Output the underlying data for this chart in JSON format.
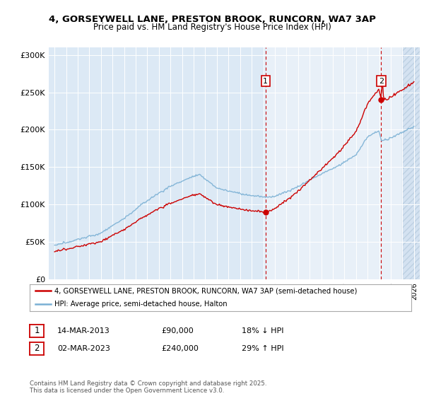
{
  "title_line1": "4, GORSEYWELL LANE, PRESTON BROOK, RUNCORN, WA7 3AP",
  "title_line2": "Price paid vs. HM Land Registry's House Price Index (HPI)",
  "legend_red": "4, GORSEYWELL LANE, PRESTON BROOK, RUNCORN, WA7 3AP (semi-detached house)",
  "legend_blue": "HPI: Average price, semi-detached house, Halton",
  "annotation1_label": "1",
  "annotation1_date": "14-MAR-2013",
  "annotation1_price": "£90,000",
  "annotation1_hpi": "18% ↓ HPI",
  "annotation1_year": 2013.2,
  "annotation1_value": 90000,
  "annotation2_label": "2",
  "annotation2_date": "02-MAR-2023",
  "annotation2_price": "£240,000",
  "annotation2_hpi": "29% ↑ HPI",
  "annotation2_year": 2023.17,
  "annotation2_value": 240000,
  "footnote": "Contains HM Land Registry data © Crown copyright and database right 2025.\nThis data is licensed under the Open Government Licence v3.0.",
  "background_color": "#dce9f5",
  "shade_color": "#e8f0f8",
  "grid_color": "#ffffff",
  "red_color": "#cc0000",
  "blue_color": "#7ab0d4",
  "ylim_min": 0,
  "ylim_max": 310000,
  "xlim_min": 1994.5,
  "xlim_max": 2026.5
}
